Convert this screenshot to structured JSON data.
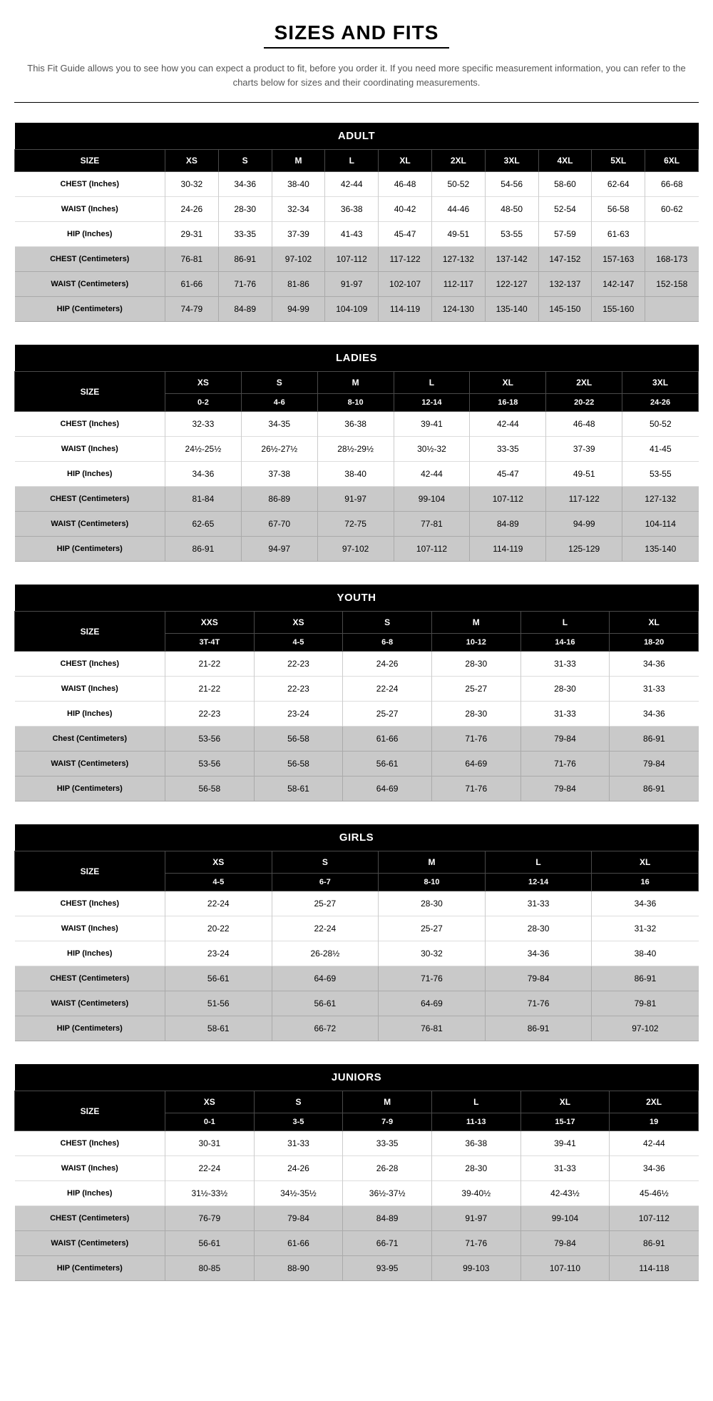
{
  "title": "SIZES AND FITS",
  "intro": "This Fit Guide allows you to see how you can expect a product to fit, before you order it. If you need more specific measurement information, you can refer to the charts below for sizes and their coordinating measurements.",
  "charts": [
    {
      "name": "ADULT",
      "size_label": "SIZE",
      "subheaders": null,
      "columns": [
        "XS",
        "S",
        "M",
        "L",
        "XL",
        "2XL",
        "3XL",
        "4XL",
        "5XL",
        "6XL"
      ],
      "rows": [
        {
          "label": "CHEST (Inches)",
          "unit": "in",
          "values": [
            "30-32",
            "34-36",
            "38-40",
            "42-44",
            "46-48",
            "50-52",
            "54-56",
            "58-60",
            "62-64",
            "66-68"
          ]
        },
        {
          "label": "WAIST (Inches)",
          "unit": "in",
          "values": [
            "24-26",
            "28-30",
            "32-34",
            "36-38",
            "40-42",
            "44-46",
            "48-50",
            "52-54",
            "56-58",
            "60-62"
          ]
        },
        {
          "label": "HIP (Inches)",
          "unit": "in",
          "values": [
            "29-31",
            "33-35",
            "37-39",
            "41-43",
            "45-47",
            "49-51",
            "53-55",
            "57-59",
            "61-63",
            ""
          ]
        },
        {
          "label": "CHEST (Centimeters)",
          "unit": "cm",
          "values": [
            "76-81",
            "86-91",
            "97-102",
            "107-112",
            "117-122",
            "127-132",
            "137-142",
            "147-152",
            "157-163",
            "168-173"
          ]
        },
        {
          "label": "WAIST (Centimeters)",
          "unit": "cm",
          "values": [
            "61-66",
            "71-76",
            "81-86",
            "91-97",
            "102-107",
            "112-117",
            "122-127",
            "132-137",
            "142-147",
            "152-158"
          ]
        },
        {
          "label": "HIP (Centimeters)",
          "unit": "cm",
          "values": [
            "74-79",
            "84-89",
            "94-99",
            "104-109",
            "114-119",
            "124-130",
            "135-140",
            "145-150",
            "155-160",
            ""
          ]
        }
      ]
    },
    {
      "name": "LADIES",
      "size_label": "SIZE",
      "columns": [
        "XS",
        "S",
        "M",
        "L",
        "XL",
        "2XL",
        "3XL"
      ],
      "subheaders": [
        "0-2",
        "4-6",
        "8-10",
        "12-14",
        "16-18",
        "20-22",
        "24-26"
      ],
      "rows": [
        {
          "label": "CHEST (Inches)",
          "unit": "in",
          "values": [
            "32-33",
            "34-35",
            "36-38",
            "39-41",
            "42-44",
            "46-48",
            "50-52"
          ]
        },
        {
          "label": "WAIST (Inches)",
          "unit": "in",
          "values": [
            "24½-25½",
            "26½-27½",
            "28½-29½",
            "30½-32",
            "33-35",
            "37-39",
            "41-45"
          ]
        },
        {
          "label": "HIP (Inches)",
          "unit": "in",
          "values": [
            "34-36",
            "37-38",
            "38-40",
            "42-44",
            "45-47",
            "49-51",
            "53-55"
          ]
        },
        {
          "label": "CHEST (Centimeters)",
          "unit": "cm",
          "values": [
            "81-84",
            "86-89",
            "91-97",
            "99-104",
            "107-112",
            "117-122",
            "127-132"
          ]
        },
        {
          "label": "WAIST (Centimeters)",
          "unit": "cm",
          "values": [
            "62-65",
            "67-70",
            "72-75",
            "77-81",
            "84-89",
            "94-99",
            "104-114"
          ]
        },
        {
          "label": "HIP (Centimeters)",
          "unit": "cm",
          "values": [
            "86-91",
            "94-97",
            "97-102",
            "107-112",
            "114-119",
            "125-129",
            "135-140"
          ]
        }
      ]
    },
    {
      "name": "YOUTH",
      "size_label": "SIZE",
      "columns": [
        "XXS",
        "XS",
        "S",
        "M",
        "L",
        "XL"
      ],
      "subheaders": [
        "3T-4T",
        "4-5",
        "6-8",
        "10-12",
        "14-16",
        "18-20"
      ],
      "rows": [
        {
          "label": "CHEST (Inches)",
          "unit": "in",
          "values": [
            "21-22",
            "22-23",
            "24-26",
            "28-30",
            "31-33",
            "34-36"
          ]
        },
        {
          "label": "WAIST (Inches)",
          "unit": "in",
          "values": [
            "21-22",
            "22-23",
            "22-24",
            "25-27",
            "28-30",
            "31-33"
          ]
        },
        {
          "label": "HIP (Inches)",
          "unit": "in",
          "values": [
            "22-23",
            "23-24",
            "25-27",
            "28-30",
            "31-33",
            "34-36"
          ]
        },
        {
          "label": "Chest (Centimeters)",
          "unit": "cm",
          "values": [
            "53-56",
            "56-58",
            "61-66",
            "71-76",
            "79-84",
            "86-91"
          ]
        },
        {
          "label": "WAIST (Centimeters)",
          "unit": "cm",
          "values": [
            "53-56",
            "56-58",
            "56-61",
            "64-69",
            "71-76",
            "79-84"
          ]
        },
        {
          "label": "HIP (Centimeters)",
          "unit": "cm",
          "values": [
            "56-58",
            "58-61",
            "64-69",
            "71-76",
            "79-84",
            "86-91"
          ]
        }
      ]
    },
    {
      "name": "GIRLS",
      "size_label": "SIZE",
      "columns": [
        "XS",
        "S",
        "M",
        "L",
        "XL"
      ],
      "subheaders": [
        "4-5",
        "6-7",
        "8-10",
        "12-14",
        "16"
      ],
      "rows": [
        {
          "label": "CHEST (Inches)",
          "unit": "in",
          "values": [
            "22-24",
            "25-27",
            "28-30",
            "31-33",
            "34-36"
          ]
        },
        {
          "label": "WAIST (Inches)",
          "unit": "in",
          "values": [
            "20-22",
            "22-24",
            "25-27",
            "28-30",
            "31-32"
          ]
        },
        {
          "label": "HIP (Inches)",
          "unit": "in",
          "values": [
            "23-24",
            "26-28½",
            "30-32",
            "34-36",
            "38-40"
          ]
        },
        {
          "label": "CHEST (Centimeters)",
          "unit": "cm",
          "values": [
            "56-61",
            "64-69",
            "71-76",
            "79-84",
            "86-91"
          ]
        },
        {
          "label": "WAIST (Centimeters)",
          "unit": "cm",
          "values": [
            "51-56",
            "56-61",
            "64-69",
            "71-76",
            "79-81"
          ]
        },
        {
          "label": "HIP (Centimeters)",
          "unit": "cm",
          "values": [
            "58-61",
            "66-72",
            "76-81",
            "86-91",
            "97-102"
          ]
        }
      ]
    },
    {
      "name": "JUNIORS",
      "size_label": "SIZE",
      "columns": [
        "XS",
        "S",
        "M",
        "L",
        "XL",
        "2XL"
      ],
      "subheaders": [
        "0-1",
        "3-5",
        "7-9",
        "11-13",
        "15-17",
        "19"
      ],
      "rows": [
        {
          "label": "CHEST (Inches)",
          "unit": "in",
          "values": [
            "30-31",
            "31-33",
            "33-35",
            "36-38",
            "39-41",
            "42-44"
          ]
        },
        {
          "label": "WAIST (Inches)",
          "unit": "in",
          "values": [
            "22-24",
            "24-26",
            "26-28",
            "28-30",
            "31-33",
            "34-36"
          ]
        },
        {
          "label": "HIP (Inches)",
          "unit": "in",
          "values": [
            "31½-33½",
            "34½-35½",
            "36½-37½",
            "39-40½",
            "42-43½",
            "45-46½"
          ]
        },
        {
          "label": "CHEST (Centimeters)",
          "unit": "cm",
          "values": [
            "76-79",
            "79-84",
            "84-89",
            "91-97",
            "99-104",
            "107-112"
          ]
        },
        {
          "label": "WAIST (Centimeters)",
          "unit": "cm",
          "values": [
            "56-61",
            "61-66",
            "66-71",
            "71-76",
            "79-84",
            "86-91"
          ]
        },
        {
          "label": "HIP (Centimeters)",
          "unit": "cm",
          "values": [
            "80-85",
            "88-90",
            "93-95",
            "99-103",
            "107-110",
            "114-118"
          ]
        }
      ]
    }
  ]
}
